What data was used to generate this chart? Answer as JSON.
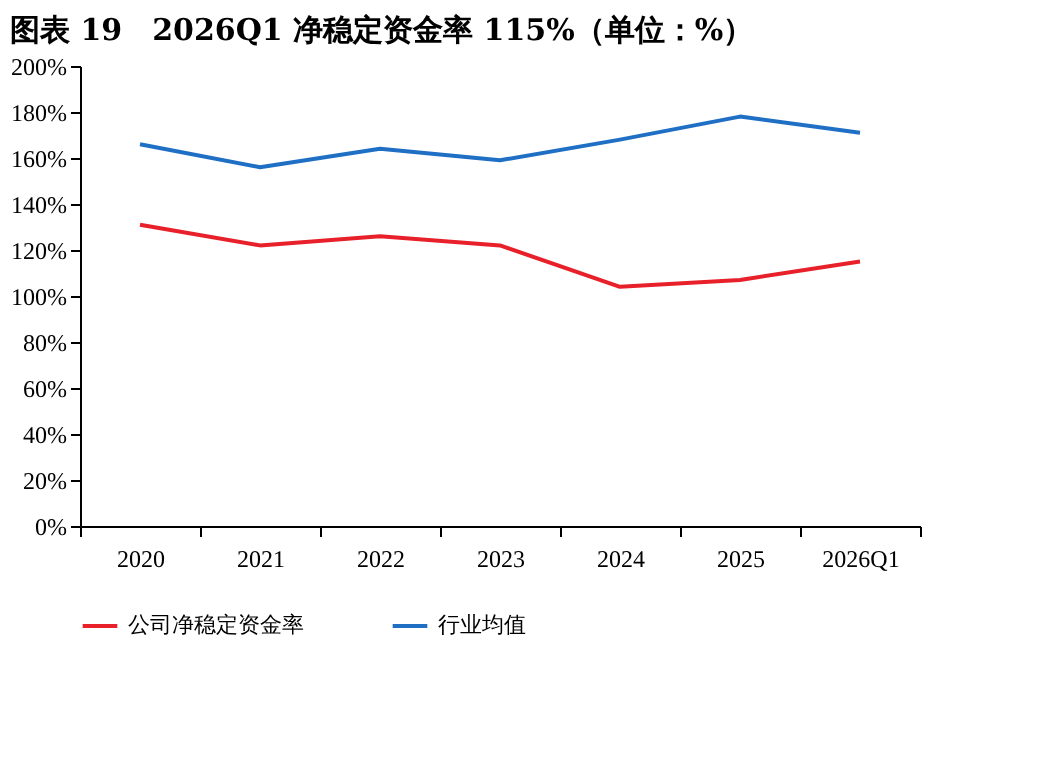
{
  "chart_data": {
    "type": "line",
    "title": "图表 19　2026Q1 净稳定资金率 115%（单位：%）",
    "categories": [
      "2020",
      "2021",
      "2022",
      "2023",
      "2024",
      "2025",
      "2026Q1"
    ],
    "series": [
      {
        "name": "公司净稳定资金率",
        "color": "#e8202a",
        "values": [
          131,
          122,
          126,
          122,
          104,
          107,
          115
        ]
      },
      {
        "name": "行业均值",
        "color": "#1f6fc5",
        "values": [
          166,
          156,
          164,
          159,
          168,
          178,
          171
        ]
      }
    ],
    "ylim": [
      0,
      200
    ],
    "yticks": [
      {
        "value": 0,
        "label": "0%"
      },
      {
        "value": 20,
        "label": "20%"
      },
      {
        "value": 40,
        "label": "40%"
      },
      {
        "value": 60,
        "label": "60%"
      },
      {
        "value": 80,
        "label": "80%"
      },
      {
        "value": 100,
        "label": "100%"
      },
      {
        "value": 120,
        "label": "120%"
      },
      {
        "value": 140,
        "label": "140%"
      },
      {
        "value": 160,
        "label": "160%"
      },
      {
        "value": 180,
        "label": "180%"
      },
      {
        "value": 200,
        "label": "200%"
      }
    ],
    "grid": false,
    "legend": "bottom",
    "marker": "none",
    "line_style": "solid"
  }
}
